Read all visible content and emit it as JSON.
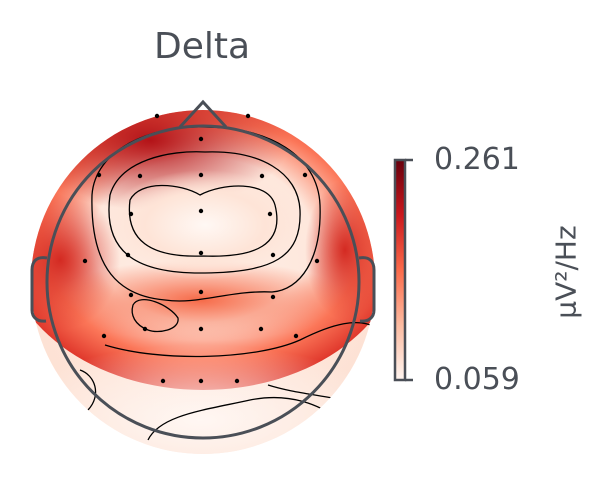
{
  "title": "Delta",
  "colorbar": {
    "max_label": "0.261",
    "min_label": "0.059",
    "unit": "μV²/Hz",
    "colormap": [
      "#fff5f0",
      "#fcbba1",
      "#fb6a4a",
      "#cb181d",
      "#67000d"
    ]
  },
  "colors": {
    "outline": "#4a4f57",
    "contour": "#000000"
  }
}
